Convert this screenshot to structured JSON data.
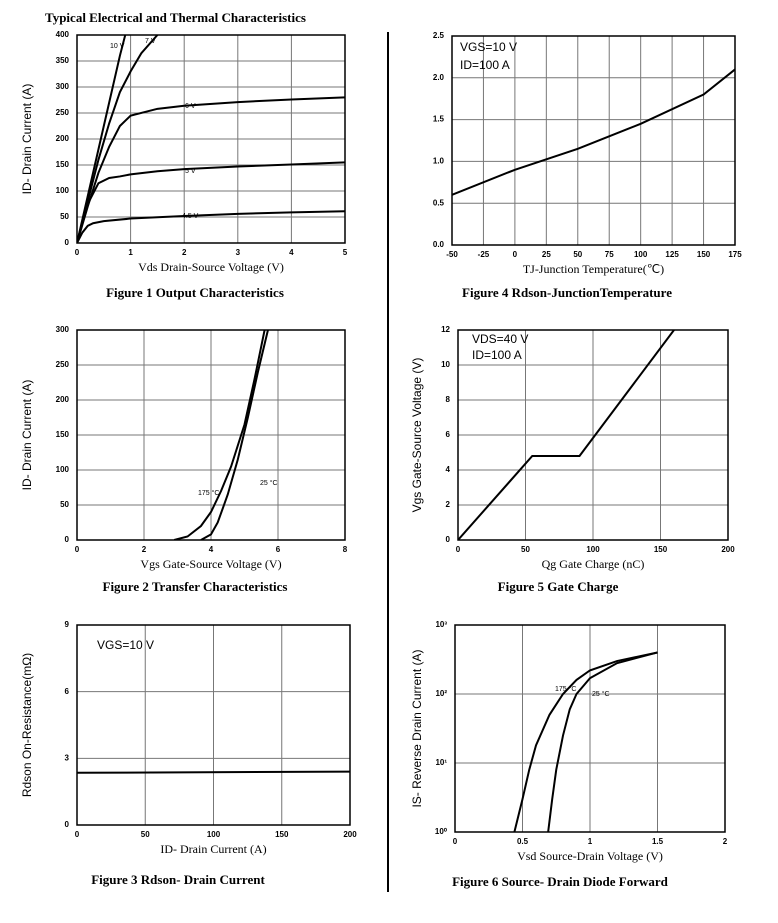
{
  "heading": "Typical Electrical and Thermal Characteristics",
  "chart_data": [
    {
      "type": "line",
      "title": "Figure 1 Output Characteristics",
      "x_label": "Vds Drain-Source Voltage (V)",
      "y_label": "ID- Drain Current (A)",
      "xlim": [
        0,
        5
      ],
      "xticks": [
        0,
        1,
        2,
        3,
        4,
        5
      ],
      "ylim": [
        0,
        400
      ],
      "yticks": [
        0,
        50,
        100,
        150,
        200,
        250,
        300,
        350,
        400
      ],
      "grid": true,
      "series": [
        {
          "name": "10 V",
          "color": "#000000",
          "x": [
            0,
            0.2,
            0.4,
            0.6,
            0.8,
            0.9
          ],
          "values": [
            0,
            90,
            180,
            270,
            360,
            400
          ]
        },
        {
          "name": "7 V",
          "color": "#000000",
          "x": [
            0,
            0.2,
            0.4,
            0.6,
            0.8,
            1,
            1.2,
            1.5
          ],
          "values": [
            0,
            80,
            160,
            230,
            290,
            330,
            365,
            400
          ]
        },
        {
          "name": "6 V",
          "color": "#000000",
          "x": [
            0,
            0.2,
            0.4,
            0.6,
            0.8,
            1,
            1.5,
            2,
            3,
            4,
            5
          ],
          "values": [
            0,
            70,
            135,
            185,
            225,
            245,
            258,
            264,
            271,
            276,
            280
          ]
        },
        {
          "name": "5 V",
          "color": "#000000",
          "x": [
            0,
            0.1,
            0.2,
            0.4,
            0.6,
            0.8,
            1,
            1.5,
            2,
            3,
            4,
            5
          ],
          "values": [
            0,
            40,
            75,
            115,
            125,
            128,
            132,
            138,
            142,
            147,
            151,
            155
          ]
        },
        {
          "name": "4.5 V",
          "color": "#000000",
          "x": [
            0,
            0.1,
            0.2,
            0.3,
            0.5,
            1,
            2,
            3,
            4,
            5
          ],
          "values": [
            0,
            20,
            33,
            38,
            42,
            47,
            52,
            56,
            59,
            61
          ]
        }
      ]
    },
    {
      "type": "line",
      "title": "Figure 2 Transfer Characteristics",
      "x_label": "Vgs Gate-Source Voltage (V)",
      "y_label": "ID- Drain Current (A)",
      "xlim": [
        0,
        8
      ],
      "xticks": [
        0,
        2,
        4,
        6,
        8
      ],
      "ylim": [
        0,
        300
      ],
      "yticks": [
        0,
        50,
        100,
        150,
        200,
        250,
        300
      ],
      "grid": true,
      "series": [
        {
          "name": "175 °C",
          "color": "#000000",
          "x": [
            2.9,
            3.3,
            3.7,
            4,
            4.3,
            4.6,
            5,
            5.3,
            5.6
          ],
          "values": [
            0,
            5,
            20,
            40,
            70,
            105,
            165,
            230,
            300
          ]
        },
        {
          "name": "25 °C",
          "color": "#000000",
          "x": [
            3.7,
            4,
            4.2,
            4.5,
            4.8,
            5.1,
            5.4,
            5.7
          ],
          "values": [
            0,
            8,
            25,
            65,
            115,
            175,
            240,
            300
          ]
        }
      ]
    },
    {
      "type": "line",
      "title": "Figure 3 Rdson- Drain Current",
      "x_label": "ID- Drain Current (A)",
      "y_label": "Rdson On-Resistance(mΩ)",
      "annotations": [
        "VGS=10 V"
      ],
      "xlim": [
        0,
        200
      ],
      "xticks": [
        0,
        50,
        100,
        150,
        200
      ],
      "ylim": [
        0,
        9
      ],
      "yticks": [
        0,
        3,
        6,
        9
      ],
      "grid": true,
      "series": [
        {
          "color": "#000000",
          "x": [
            0,
            200
          ],
          "values": [
            2.35,
            2.4
          ]
        }
      ]
    },
    {
      "type": "line",
      "title": "Figure 4 Rdson-JunctionTemperature",
      "x_label": "TJ-Junction Temperature(℃)",
      "annotations": [
        "VGS=10 V",
        "ID=100 A"
      ],
      "xlim": [
        -50,
        175
      ],
      "xticks": [
        -50,
        -25,
        0,
        25,
        50,
        75,
        100,
        125,
        150,
        175
      ],
      "ylim": [
        0,
        2.5
      ],
      "yticks": [
        {
          "value": 0,
          "label": "0.0"
        },
        0.5,
        {
          "value": 1,
          "label": "1.0"
        },
        1.5,
        {
          "value": 2,
          "label": "2.0"
        },
        2.5
      ],
      "grid": true,
      "series": [
        {
          "color": "#000000",
          "x": [
            -50,
            0,
            50,
            100,
            150,
            175
          ],
          "values": [
            0.6,
            0.9,
            1.15,
            1.45,
            1.8,
            2.1
          ]
        }
      ]
    },
    {
      "type": "line",
      "title": "Figure 5 Gate Charge",
      "x_label": "Qg Gate Charge (nC)",
      "y_label": "Vgs Gate-Source Voltage (V)",
      "annotations": [
        "VDS=40 V",
        "ID=100 A"
      ],
      "xlim": [
        0,
        200
      ],
      "xticks": [
        0,
        50,
        100,
        150,
        200
      ],
      "ylim": [
        0,
        12
      ],
      "yticks": [
        0,
        2,
        4,
        6,
        8,
        10,
        12
      ],
      "grid": true,
      "series": [
        {
          "color": "#000000",
          "x": [
            0,
            55,
            90,
            160
          ],
          "values": [
            0,
            4.8,
            4.8,
            12
          ]
        }
      ]
    },
    {
      "type": "line",
      "title": "Figure 6 Source- Drain Diode Forward",
      "x_label": "Vsd Source-Drain Voltage (V)",
      "y_label": "IS- Reverse Drain Current (A)",
      "xlim": [
        0,
        2
      ],
      "xticks": [
        0,
        0.5,
        1,
        1.5,
        2
      ],
      "ylim": [
        1,
        1000
      ],
      "log_y": true,
      "yticks": [
        {
          "value": 1,
          "label": "10⁰"
        },
        {
          "value": 10,
          "label": "10¹"
        },
        {
          "value": 100,
          "label": "10²"
        },
        {
          "value": 1000,
          "label": "10³"
        }
      ],
      "grid": true,
      "series": [
        {
          "name": "175 °C",
          "color": "#000000",
          "x": [
            0.44,
            0.5,
            0.55,
            0.6,
            0.7,
            0.8,
            0.9,
            1.0,
            1.2,
            1.5
          ],
          "values": [
            1,
            3,
            8,
            18,
            50,
            100,
            160,
            220,
            300,
            400
          ]
        },
        {
          "name": "25 °C",
          "color": "#000000",
          "x": [
            0.69,
            0.72,
            0.75,
            0.8,
            0.85,
            0.9,
            1.0,
            1.2,
            1.5
          ],
          "values": [
            1,
            3,
            8,
            25,
            60,
            100,
            170,
            280,
            400
          ]
        }
      ]
    }
  ]
}
